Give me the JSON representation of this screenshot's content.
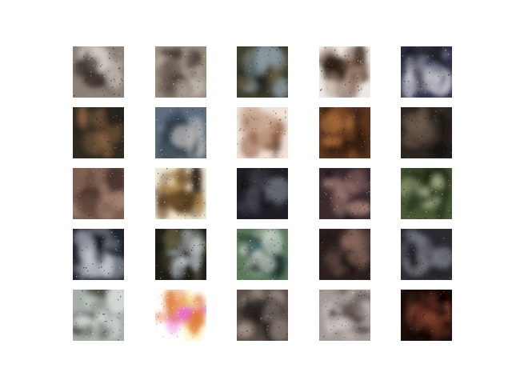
{
  "grid": {
    "rows": 5,
    "cols": 5,
    "background": "#ffffff",
    "samples": [
      {
        "palette": [
          "#8c8077",
          "#3c2f2a",
          "#d8d2cc",
          "#1d1714"
        ]
      },
      {
        "palette": [
          "#9a8d80",
          "#c9c0b5",
          "#5d514a",
          "#2c2520"
        ]
      },
      {
        "palette": [
          "#3f3d2c",
          "#8c9aa3",
          "#6e6444",
          "#1e201b"
        ]
      },
      {
        "palette": [
          "#ede9e7",
          "#5d3e2a",
          "#b39a88",
          "#2b1e18"
        ]
      },
      {
        "palette": [
          "#2e3248",
          "#9a9aa8",
          "#d6d5df",
          "#17161f"
        ]
      },
      {
        "palette": [
          "#2e2a1f",
          "#9b6d4b",
          "#5a4632",
          "#141410"
        ]
      },
      {
        "palette": [
          "#5f6e7e",
          "#b5b7b7",
          "#32414e",
          "#1e2530"
        ]
      },
      {
        "palette": [
          "#efe2d8",
          "#8c5a3e",
          "#c9a891",
          "#4e3629"
        ]
      },
      {
        "palette": [
          "#5a341e",
          "#b8783f",
          "#7d4a26",
          "#2a1810"
        ]
      },
      {
        "palette": [
          "#2b241f",
          "#6b5a4b",
          "#3d332c",
          "#141110"
        ]
      },
      {
        "palette": [
          "#7c5d4f",
          "#b38f7d",
          "#5a4238",
          "#3e2e26"
        ]
      },
      {
        "palette": [
          "#f0e8d6",
          "#c79a45",
          "#6e5130",
          "#2c2016"
        ]
      },
      {
        "palette": [
          "#1e1e24",
          "#6a6d78",
          "#3b3b44",
          "#0f0f12"
        ]
      },
      {
        "palette": [
          "#3a2a2e",
          "#c89a8f",
          "#6d4f52",
          "#1e1618"
        ]
      },
      {
        "palette": [
          "#4a5a36",
          "#a9b48a",
          "#243119",
          "#151c10"
        ]
      },
      {
        "palette": [
          "#1e252c",
          "#8a8c9a",
          "#c3c7cf",
          "#0f1216"
        ]
      },
      {
        "palette": [
          "#1c1c14",
          "#c6ced3",
          "#5f5a3a",
          "#0b0b08"
        ]
      },
      {
        "palette": [
          "#5c7a5b",
          "#d4dbd6",
          "#2e5c5f",
          "#1f2a22"
        ]
      },
      {
        "palette": [
          "#2a1f1d",
          "#8a6b5e",
          "#4a3732",
          "#110c0b"
        ]
      },
      {
        "palette": [
          "#2b2a30",
          "#7b7d86",
          "#4a4850",
          "#151418"
        ]
      },
      {
        "palette": [
          "#a6aea8",
          "#e7ebe8",
          "#4a4f45",
          "#262b22"
        ]
      },
      {
        "palette": [
          "#ffffff",
          "#f6e97a",
          "#e07a3a",
          "#e85fd6"
        ]
      },
      {
        "palette": [
          "#5d5048",
          "#a89a8f",
          "#2f2a28",
          "#1a1716"
        ]
      },
      {
        "palette": [
          "#a39a97",
          "#d7d0cd",
          "#6a5c58",
          "#3d3432"
        ]
      },
      {
        "palette": [
          "#1a0d0a",
          "#a85a3e",
          "#5e2c1f",
          "#0a0504"
        ]
      }
    ]
  }
}
